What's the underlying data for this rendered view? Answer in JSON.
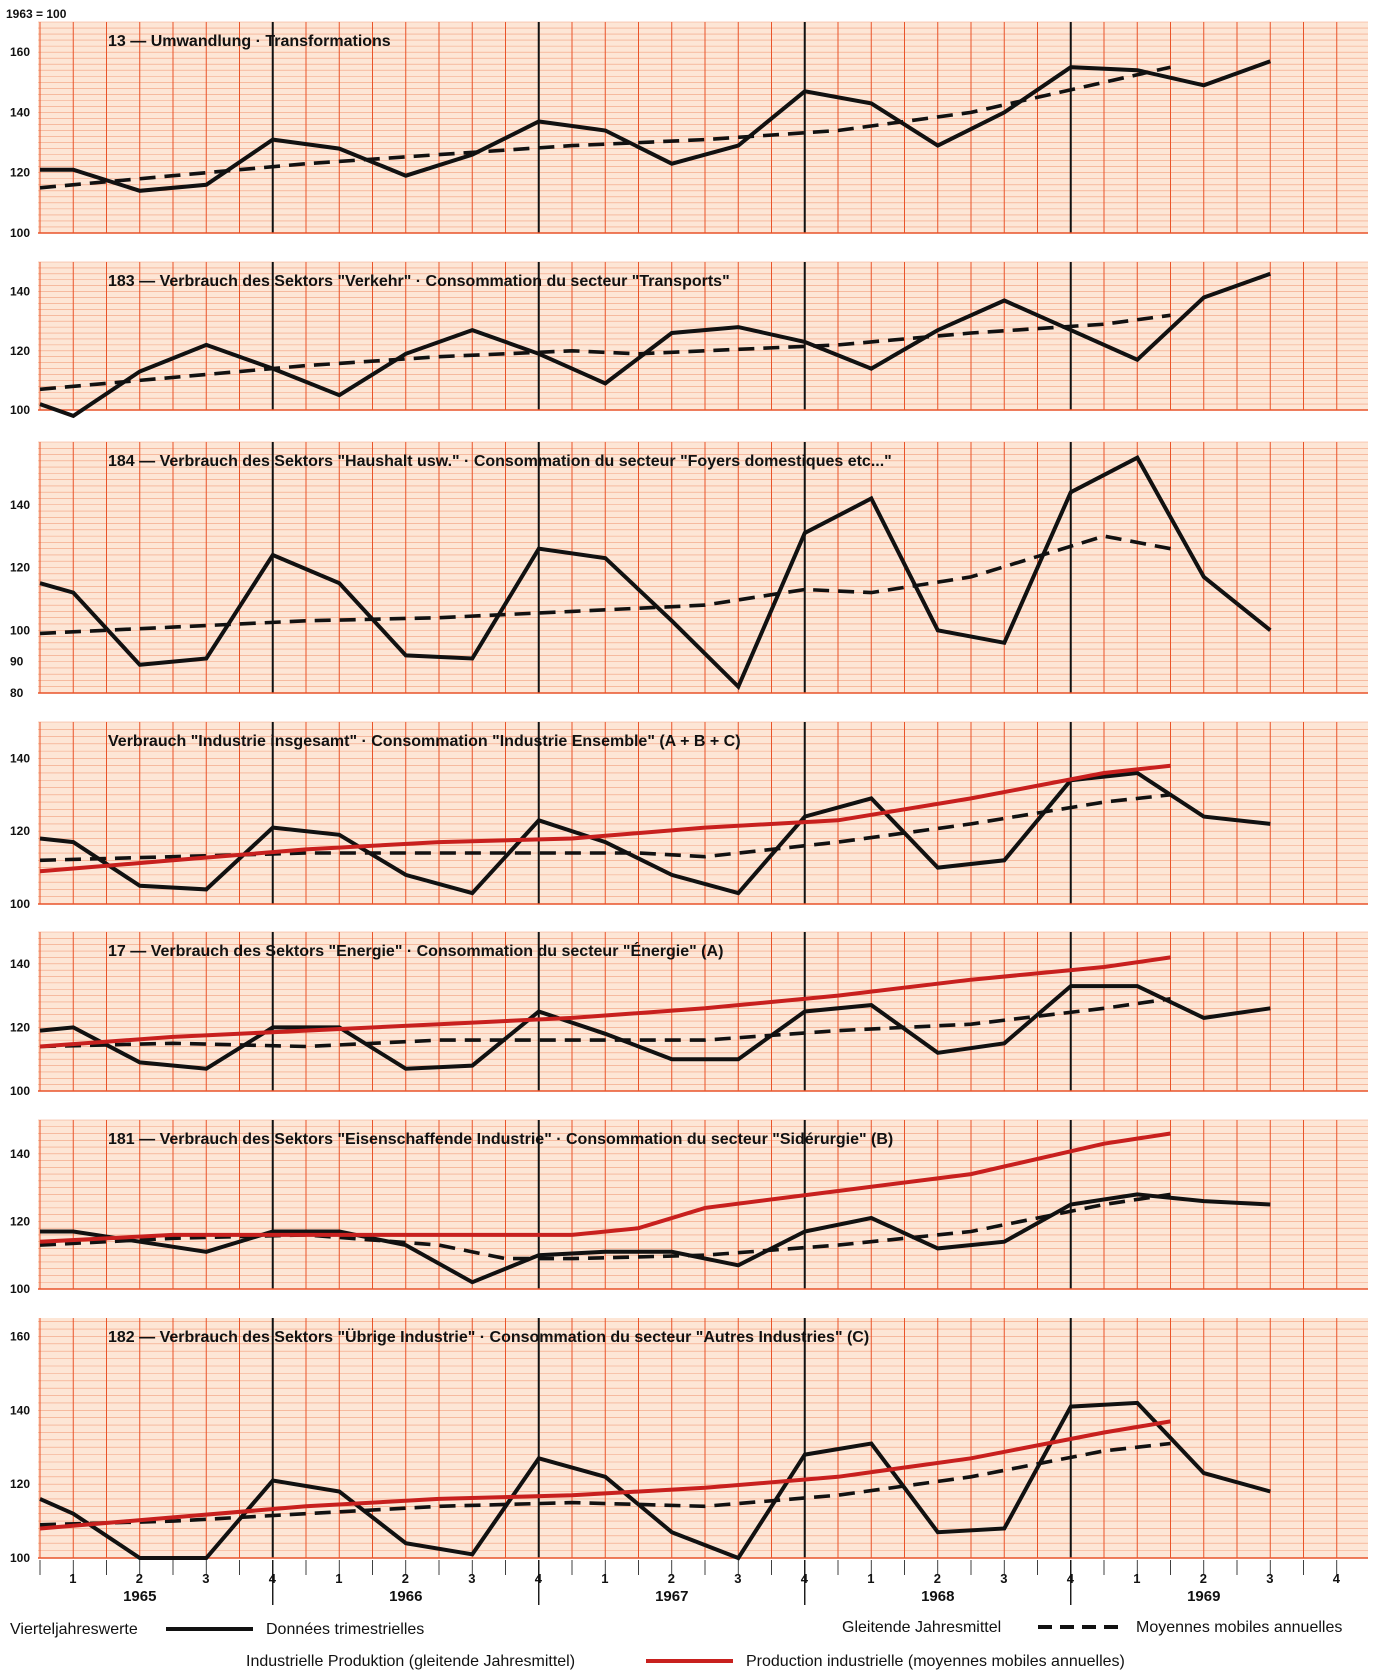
{
  "base_label": "1963 = 100",
  "x_axis": {
    "quarters": [
      "1",
      "2",
      "3",
      "4",
      "1",
      "2",
      "3",
      "4",
      "1",
      "2",
      "3",
      "4",
      "1",
      "2",
      "3",
      "4",
      "1",
      "2",
      "3",
      "4"
    ],
    "years": [
      "1965",
      "1966",
      "1967",
      "1968",
      "1969"
    ]
  },
  "legend": {
    "quarterly_de": "Vierteljahreswerte",
    "quarterly_fr": "Données trimestrielles",
    "moving_de": "Gleitende Jahresmittel",
    "moving_fr": "Moyennes mobiles annuelles",
    "production_de": "Industrielle Produktion (gleitende Jahresmittel)",
    "production_fr": "Production industrielle (moyennes mobiles annuelles)"
  },
  "colors": {
    "grid": "#e9542a",
    "hgrid": "#f2a07e",
    "background": "#fde6d6",
    "quarterly": "#111111",
    "production": "#c8201e"
  },
  "chart_data": [
    {
      "type": "line",
      "title": "13 — Umwandlung · Transformations",
      "yticks": [
        "160",
        "140",
        "120",
        "100"
      ],
      "ylim": [
        100,
        170
      ],
      "series": [
        {
          "name": "Vierteljahreswerte",
          "x": [
            0.0,
            0.5,
            1.5,
            2.5,
            3.5,
            4.5,
            5.5,
            6.5,
            7.5,
            8.5,
            9.5,
            10.5,
            11.5,
            12.5,
            13.5,
            14.5,
            15.5,
            16.5,
            17.5,
            18.5
          ],
          "values": [
            121,
            121,
            114,
            116,
            131,
            128,
            119,
            126,
            137,
            134,
            123,
            129,
            147,
            143,
            129,
            140,
            155,
            154,
            149,
            157
          ]
        },
        {
          "name": "Gleitende Jahresmittel",
          "x": [
            0.0,
            2.0,
            4.0,
            6.0,
            8.0,
            10.0,
            12.0,
            14.0,
            16.0,
            17.0
          ],
          "values": [
            115,
            119,
            123,
            126,
            129,
            131,
            134,
            140,
            150,
            155
          ]
        }
      ]
    },
    {
      "type": "line",
      "title": "183 — Verbrauch des Sektors \"Verkehr\" · Consommation du secteur \"Transports\"",
      "yticks": [
        "140",
        "120",
        "100"
      ],
      "ylim": [
        100,
        150
      ],
      "series": [
        {
          "name": "Vierteljahreswerte",
          "x": [
            0.0,
            0.5,
            1.5,
            2.5,
            3.5,
            4.5,
            5.5,
            6.5,
            7.5,
            8.5,
            9.5,
            10.5,
            11.5,
            12.5,
            13.5,
            14.5,
            15.5,
            16.5,
            17.5,
            18.5
          ],
          "values": [
            102,
            98,
            113,
            122,
            114,
            105,
            119,
            127,
            119,
            109,
            126,
            128,
            123,
            114,
            127,
            137,
            127,
            117,
            138,
            146
          ]
        },
        {
          "name": "Gleitende Jahresmittel",
          "x": [
            0.0,
            2.0,
            4.0,
            6.0,
            8.0,
            9.0,
            10.0,
            12.0,
            14.0,
            16.0,
            17.0
          ],
          "values": [
            107,
            111,
            115,
            118,
            120,
            119,
            120,
            122,
            126,
            129,
            132
          ]
        }
      ]
    },
    {
      "type": "line",
      "title": "184 — Verbrauch des Sektors \"Haushalt usw.\" · Consommation du secteur \"Foyers domestiques etc...\"",
      "yticks": [
        "140",
        "120",
        "100",
        "90",
        "80"
      ],
      "ylim": [
        80,
        160
      ],
      "series": [
        {
          "name": "Vierteljahreswerte",
          "x": [
            0.0,
            0.5,
            1.5,
            2.5,
            3.5,
            4.5,
            5.5,
            6.5,
            7.5,
            8.5,
            9.5,
            10.5,
            11.5,
            12.5,
            13.5,
            14.5,
            15.5,
            16.5,
            17.5,
            18.5
          ],
          "values": [
            115,
            112,
            89,
            91,
            124,
            115,
            92,
            91,
            126,
            123,
            103,
            82,
            131,
            142,
            100,
            96,
            144,
            155,
            117,
            100
          ]
        },
        {
          "name": "Gleitende Jahresmittel",
          "x": [
            0.0,
            2.0,
            4.0,
            6.0,
            8.0,
            10.0,
            11.5,
            12.5,
            14.0,
            16.0,
            17.0
          ],
          "values": [
            99,
            101,
            103,
            104,
            106,
            108,
            113,
            112,
            117,
            130,
            126
          ]
        }
      ]
    },
    {
      "type": "line",
      "title": "Verbrauch \"Industrie insgesamt\" · Consommation \"Industrie Ensemble\" (A + B + C)",
      "yticks": [
        "140",
        "120",
        "100"
      ],
      "ylim": [
        100,
        150
      ],
      "series": [
        {
          "name": "Vierteljahreswerte",
          "x": [
            0.0,
            0.5,
            1.5,
            2.5,
            3.5,
            4.5,
            5.5,
            6.5,
            7.5,
            8.5,
            9.5,
            10.5,
            11.5,
            12.5,
            13.5,
            14.5,
            15.5,
            16.5,
            17.5,
            18.5
          ],
          "values": [
            118,
            117,
            105,
            104,
            121,
            119,
            108,
            103,
            123,
            117,
            108,
            103,
            124,
            129,
            110,
            112,
            134,
            136,
            124,
            122
          ]
        },
        {
          "name": "Gleitende Jahresmittel",
          "x": [
            0.0,
            2.0,
            4.0,
            6.0,
            8.0,
            9.0,
            10.0,
            12.0,
            14.0,
            16.0,
            17.0
          ],
          "values": [
            112,
            113,
            114,
            114,
            114,
            114,
            113,
            117,
            122,
            128,
            130
          ]
        },
        {
          "name": "Industrielle Produktion (gleitende Jahresmittel)",
          "x": [
            0.0,
            2.0,
            4.0,
            6.0,
            8.0,
            10.0,
            12.0,
            14.0,
            16.0,
            17.0
          ],
          "values": [
            109,
            112,
            115,
            117,
            118,
            121,
            123,
            129,
            136,
            138
          ]
        }
      ]
    },
    {
      "type": "line",
      "title": "17 — Verbrauch des Sektors \"Energie\" · Consommation du secteur \"Énergie\" (A)",
      "yticks": [
        "140",
        "120",
        "100"
      ],
      "ylim": [
        100,
        150
      ],
      "series": [
        {
          "name": "Vierteljahreswerte",
          "x": [
            0.0,
            0.5,
            1.5,
            2.5,
            3.5,
            4.5,
            5.5,
            6.5,
            7.5,
            8.5,
            9.5,
            10.5,
            11.5,
            12.5,
            13.5,
            14.5,
            15.5,
            16.5,
            17.5,
            18.5
          ],
          "values": [
            119,
            120,
            109,
            107,
            120,
            120,
            107,
            108,
            125,
            118,
            110,
            110,
            125,
            127,
            112,
            115,
            133,
            133,
            123,
            126
          ]
        },
        {
          "name": "Gleitende Jahresmittel",
          "x": [
            0.0,
            2.0,
            4.0,
            6.0,
            8.0,
            10.0,
            12.0,
            14.0,
            16.0,
            17.0
          ],
          "values": [
            114,
            115,
            114,
            116,
            116,
            116,
            119,
            121,
            126,
            129
          ]
        },
        {
          "name": "Industrielle Produktion (gleitende Jahresmittel)",
          "x": [
            0.0,
            2.0,
            4.0,
            6.0,
            8.0,
            10.0,
            12.0,
            14.0,
            16.0,
            17.0
          ],
          "values": [
            114,
            117,
            119,
            121,
            123,
            126,
            130,
            135,
            139,
            142
          ]
        }
      ]
    },
    {
      "type": "line",
      "title": "181 — Verbrauch des Sektors \"Eisenschaffende Industrie\" · Consommation du secteur \"Sidérurgie\" (B)",
      "yticks": [
        "140",
        "120",
        "100"
      ],
      "ylim": [
        100,
        150
      ],
      "series": [
        {
          "name": "Vierteljahreswerte",
          "x": [
            0.0,
            0.5,
            1.5,
            2.5,
            3.5,
            4.5,
            5.5,
            6.5,
            7.5,
            8.5,
            9.5,
            10.5,
            11.5,
            12.5,
            13.5,
            14.5,
            15.5,
            16.5,
            17.5,
            18.5
          ],
          "values": [
            117,
            117,
            114,
            111,
            117,
            117,
            113,
            102,
            110,
            111,
            111,
            107,
            117,
            121,
            112,
            114,
            125,
            128,
            126,
            125
          ]
        },
        {
          "name": "Gleitende Jahresmittel",
          "x": [
            0.0,
            2.0,
            4.0,
            6.0,
            7.0,
            8.0,
            10.0,
            12.0,
            14.0,
            16.0,
            17.0
          ],
          "values": [
            113,
            115,
            116,
            113,
            109,
            109,
            110,
            113,
            117,
            125,
            128
          ]
        },
        {
          "name": "Industrielle Produktion (gleitende Jahresmittel)",
          "x": [
            0.0,
            2.0,
            4.0,
            6.0,
            8.0,
            9.0,
            10.0,
            12.0,
            14.0,
            16.0,
            17.0
          ],
          "values": [
            114,
            116,
            116,
            116,
            116,
            118,
            124,
            129,
            134,
            143,
            146
          ]
        }
      ]
    },
    {
      "type": "line",
      "title": "182 — Verbrauch des Sektors \"Übrige Industrie\" · Consommation du secteur \"Autres Industries\" (C)",
      "yticks": [
        "160",
        "140",
        "120",
        "100"
      ],
      "ylim": [
        100,
        165
      ],
      "series": [
        {
          "name": "Vierteljahreswerte",
          "x": [
            0.0,
            0.5,
            1.5,
            2.5,
            3.5,
            4.5,
            5.5,
            6.5,
            7.5,
            8.5,
            9.5,
            10.5,
            11.5,
            12.5,
            13.5,
            14.5,
            15.5,
            16.5,
            17.5,
            18.5
          ],
          "values": [
            116,
            112,
            100,
            100,
            121,
            118,
            104,
            101,
            127,
            122,
            107,
            100,
            128,
            131,
            107,
            108,
            141,
            142,
            123,
            118
          ]
        },
        {
          "name": "Gleitende Jahresmittel",
          "x": [
            0.0,
            2.0,
            4.0,
            6.0,
            8.0,
            10.0,
            12.0,
            14.0,
            16.0,
            17.0
          ],
          "values": [
            109,
            110,
            112,
            114,
            115,
            114,
            117,
            122,
            129,
            131
          ]
        },
        {
          "name": "Industrielle Produktion (gleitende Jahresmittel)",
          "x": [
            0.0,
            2.0,
            4.0,
            6.0,
            8.0,
            10.0,
            12.0,
            14.0,
            16.0,
            17.0
          ],
          "values": [
            108,
            111,
            114,
            116,
            117,
            119,
            122,
            127,
            134,
            137
          ]
        }
      ]
    }
  ]
}
